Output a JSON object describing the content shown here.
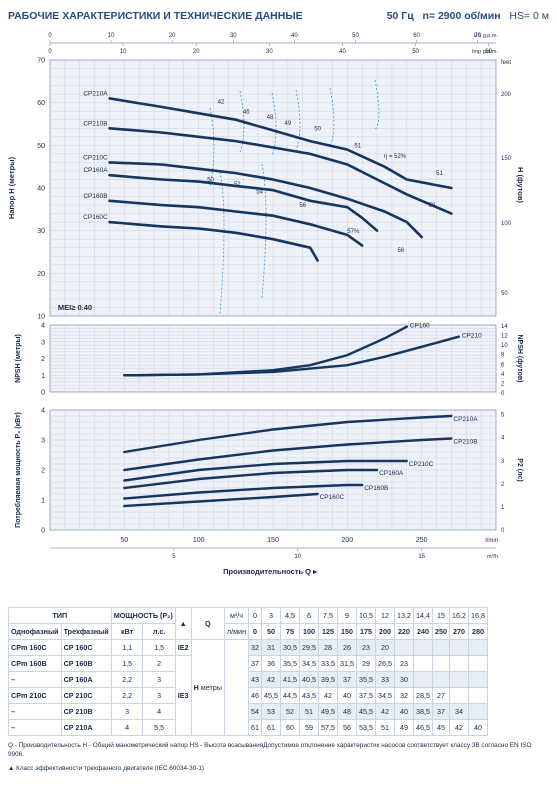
{
  "header": {
    "title": "РАБОЧИЕ ХАРАКТЕРИСТИКИ И ТЕХНИЧЕСКИЕ ДАННЫЕ",
    "freq": "50 Гц",
    "speed": "n= 2900 об/мин",
    "hs": "HS= 0 м"
  },
  "chart_data": [
    {
      "type": "line",
      "ylabel": "Напор H (метры)",
      "ylabel_right": "H (футов)",
      "ylim": [
        10,
        70
      ],
      "xlim": [
        0,
        300
      ],
      "top_axes": [
        {
          "unit": "US g.p.m.",
          "ticks": [
            "0",
            "10",
            "20",
            "30",
            "40",
            "50",
            "60",
            "70"
          ]
        },
        {
          "unit": "Imp g.p.m.",
          "ticks": [
            "0",
            "10",
            "20",
            "30",
            "40",
            "50",
            "60"
          ]
        }
      ],
      "right_ticks": [
        "feet",
        "200",
        "150",
        "100",
        "50"
      ],
      "annotation": "MEI≥ 0.40",
      "series": [
        {
          "name": "CP210A",
          "x": [
            40,
            75,
            100,
            125,
            150,
            175,
            200,
            225,
            240,
            270
          ],
          "y": [
            61,
            59,
            57.5,
            56,
            53.5,
            51,
            49,
            45,
            42,
            40
          ]
        },
        {
          "name": "CP210B",
          "x": [
            40,
            75,
            100,
            125,
            150,
            175,
            200,
            220,
            240,
            270
          ],
          "y": [
            54,
            53,
            52,
            51,
            49.5,
            48,
            45.5,
            42,
            38.5,
            34
          ]
        },
        {
          "name": "CP210C",
          "x": [
            40,
            75,
            100,
            125,
            150,
            175,
            200,
            225,
            240,
            250
          ],
          "y": [
            46,
            45.5,
            44.5,
            43.5,
            42,
            40,
            37.5,
            34.5,
            32,
            28.5
          ]
        },
        {
          "name": "CP160A",
          "x": [
            40,
            75,
            100,
            125,
            150,
            175,
            200,
            210,
            220
          ],
          "y": [
            43,
            42,
            41.5,
            40.5,
            39.5,
            37,
            35.5,
            33,
            30
          ]
        },
        {
          "name": "CP160B",
          "x": [
            40,
            75,
            100,
            125,
            150,
            175,
            200,
            210
          ],
          "y": [
            37,
            36,
            35.5,
            34.5,
            33.5,
            31.5,
            29,
            26.5
          ]
        },
        {
          "name": "CP160C",
          "x": [
            40,
            75,
            100,
            125,
            150,
            175,
            180
          ],
          "y": [
            32,
            31,
            30.5,
            29.5,
            28,
            26,
            23
          ]
        }
      ],
      "efficiency_labels": [
        {
          "text": "42",
          "x": 115,
          "y": 59.8
        },
        {
          "text": "46",
          "x": 132,
          "y": 57.5
        },
        {
          "text": "48",
          "x": 148,
          "y": 56.2
        },
        {
          "text": "49",
          "x": 160,
          "y": 54.8
        },
        {
          "text": "50",
          "x": 180,
          "y": 53.5
        },
        {
          "text": "51",
          "x": 207,
          "y": 49.5
        },
        {
          "text": "η = 52%",
          "x": 232,
          "y": 47
        },
        {
          "text": "51",
          "x": 262,
          "y": 43
        },
        {
          "text": "50",
          "x": 257,
          "y": 35.5
        },
        {
          "text": "50",
          "x": 108,
          "y": 41.5
        },
        {
          "text": "52",
          "x": 126,
          "y": 40.5
        },
        {
          "text": "54",
          "x": 141,
          "y": 38.7
        },
        {
          "text": "56",
          "x": 170,
          "y": 35.5
        },
        {
          "text": "57%",
          "x": 204,
          "y": 29.5
        },
        {
          "text": "56",
          "x": 236,
          "y": 25
        }
      ]
    },
    {
      "type": "line",
      "ylabel": "NPSH (метры)",
      "ylabel_right": "NPSH (футов)",
      "ylim": [
        0,
        4
      ],
      "right_ticks": [
        "14",
        "12",
        "10",
        "8",
        "6",
        "4",
        "2",
        "0"
      ],
      "series": [
        {
          "name": "CP160",
          "x": [
            50,
            100,
            150,
            175,
            200,
            225,
            240
          ],
          "y": [
            1.0,
            1.05,
            1.3,
            1.6,
            2.2,
            3.2,
            3.9
          ]
        },
        {
          "name": "CP210",
          "x": [
            50,
            100,
            150,
            200,
            225,
            250,
            275
          ],
          "y": [
            1.0,
            1.05,
            1.2,
            1.6,
            2.1,
            2.7,
            3.3
          ]
        }
      ]
    },
    {
      "type": "line",
      "ylabel": "Потребляемая мощность P₂ (кВт)",
      "ylabel_right": "P2 (лс)",
      "ylim": [
        0,
        4
      ],
      "right_ticks": [
        "0",
        "1",
        "2",
        "3",
        "4",
        "5"
      ],
      "xticks_top": [
        "50",
        "100",
        "150",
        "200",
        "250"
      ],
      "xticks_top_unit": "l/min",
      "xticks_bottom": [
        "5",
        "10",
        "15"
      ],
      "xticks_bottom_unit": "m³/h",
      "xlabel": "Производительность Q",
      "series": [
        {
          "name": "CP210A",
          "x": [
            50,
            100,
            150,
            200,
            250,
            270
          ],
          "y": [
            2.6,
            3.0,
            3.35,
            3.6,
            3.75,
            3.8
          ]
        },
        {
          "name": "CP210B",
          "x": [
            50,
            100,
            150,
            200,
            250,
            270
          ],
          "y": [
            2.0,
            2.35,
            2.65,
            2.85,
            3.0,
            3.05
          ]
        },
        {
          "name": "CP210C",
          "x": [
            50,
            100,
            150,
            200,
            240
          ],
          "y": [
            1.65,
            2.0,
            2.2,
            2.3,
            2.3
          ]
        },
        {
          "name": "CP160A",
          "x": [
            50,
            100,
            150,
            200,
            220
          ],
          "y": [
            1.4,
            1.7,
            1.9,
            2.0,
            2.0
          ]
        },
        {
          "name": "CP160B",
          "x": [
            50,
            100,
            150,
            200,
            210
          ],
          "y": [
            1.05,
            1.25,
            1.4,
            1.5,
            1.5
          ]
        },
        {
          "name": "CP160C",
          "x": [
            50,
            100,
            150,
            180
          ],
          "y": [
            0.8,
            0.95,
            1.1,
            1.2
          ]
        }
      ]
    }
  ],
  "table": {
    "type_label": "ТИП",
    "power_label": "МОЩНОСТЬ (P₂)",
    "single_phase": "Однофазный",
    "three_phase": "Трехфазный",
    "kw": "кВт",
    "hp": "л.с.",
    "triangle": "▲",
    "q_label": "Q",
    "q_units_m3": "м³/ч",
    "q_units_l": "л/мин",
    "h_label": "H",
    "h_unit": "метры",
    "q_m3": [
      "0",
      "3",
      "4,5",
      "6",
      "7,5",
      "9",
      "10,5",
      "12",
      "13,2",
      "14,4",
      "15",
      "16,2",
      "16,8"
    ],
    "q_l": [
      "0",
      "50",
      "75",
      "100",
      "125",
      "150",
      "175",
      "200",
      "220",
      "240",
      "250",
      "270",
      "280"
    ],
    "ie2": "IE2",
    "ie3": "IE3",
    "rows": [
      {
        "single": "CPm 160C",
        "three": "CP 160C",
        "kw": "1,1",
        "hp": "1,5",
        "h": [
          "32",
          "31",
          "30,5",
          "29,5",
          "28",
          "26",
          "23",
          "20",
          "",
          "",
          "",
          "",
          ""
        ]
      },
      {
        "single": "CPm 160B",
        "three": "CP 160B",
        "kw": "1,5",
        "hp": "2",
        "h": [
          "37",
          "36",
          "35,5",
          "34,5",
          "33,5",
          "31,5",
          "29",
          "26,5",
          "23",
          "",
          "",
          "",
          ""
        ]
      },
      {
        "single": "–",
        "three": "CP 160A",
        "kw": "2,2",
        "hp": "3",
        "h": [
          "43",
          "42",
          "41,5",
          "40,5",
          "39,5",
          "37",
          "35,5",
          "33",
          "30",
          "",
          "",
          "",
          ""
        ]
      },
      {
        "single": "CPm 210C",
        "three": "CP 210C",
        "kw": "2,2",
        "hp": "3",
        "h": [
          "46",
          "45,5",
          "44,5",
          "43,5",
          "42",
          "40",
          "37,5",
          "34,5",
          "32",
          "28,5",
          "27",
          "",
          ""
        ]
      },
      {
        "single": "–",
        "three": "CP 210B",
        "kw": "3",
        "hp": "4",
        "h": [
          "54",
          "53",
          "52",
          "51",
          "49,5",
          "48",
          "45,5",
          "42",
          "40",
          "38,5",
          "37",
          "34",
          ""
        ]
      },
      {
        "single": "–",
        "three": "CP 210A",
        "kw": "4",
        "hp": "5,5",
        "h": [
          "61",
          "61",
          "60",
          "59",
          "57,5",
          "56",
          "53,5",
          "51",
          "49",
          "46,5",
          "45",
          "42",
          "40"
        ]
      }
    ]
  },
  "notes": {
    "line1": "Q - Производительность  H - Общий манометрический напор  HS - Высота всасыванияДопустимое отклонение характеристик насосов соответствует классу 3B согласно EN ISO 9906.",
    "line2": "▲ Класс эффективности трехфазного двигателя (IEC 60034-30-1)"
  },
  "colors": {
    "curve": "#16355f",
    "grid": "#c4cbe0",
    "panel": "#eef1f8",
    "accent": "#2a4a80",
    "dash": "#1f9fd8"
  }
}
